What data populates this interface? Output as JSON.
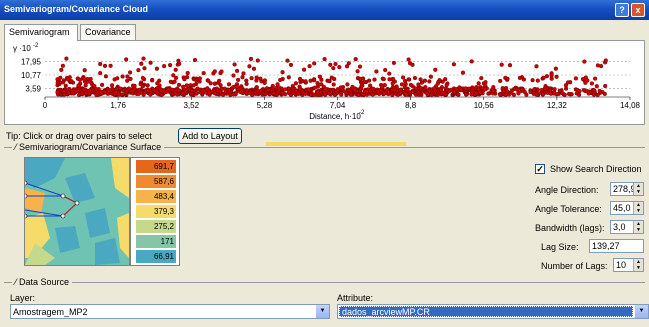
{
  "window": {
    "title": "Semivariogram/Covariance Cloud",
    "help_glyph": "?",
    "close_glyph": "x"
  },
  "tabs": [
    {
      "label": "Semivariogram",
      "active": true
    },
    {
      "label": "Covariance",
      "active": false
    }
  ],
  "chart_data": {
    "type": "scatter",
    "xlabel": "Distance, h·10",
    "xlabel_exponent": "-2",
    "ylabel": "γ ·10",
    "ylabel_exponent": "-2",
    "x_ticks": [
      "0",
      "1,76",
      "3,52",
      "5,28",
      "7,04",
      "8,8",
      "10,56",
      "12,32",
      "14,08"
    ],
    "y_ticks": [
      "17,95",
      "10,77",
      "3,59"
    ],
    "xlim": [
      0,
      14.08
    ],
    "ylim": [
      0,
      21.54
    ],
    "grid": true,
    "marker_color": "#cc0000",
    "point_count_estimate": 1400
  },
  "tip": {
    "text": "Tip:   Click or drag over pairs to select",
    "add_layout_label": "Add to Layout"
  },
  "surface": {
    "section_label": "Semivariogram/Covariance Surface",
    "legend": [
      {
        "value": "691,7",
        "color": "#e6661a"
      },
      {
        "value": "587,6",
        "color": "#f08a2e"
      },
      {
        "value": "483,4",
        "color": "#f7b24a"
      },
      {
        "value": "379,3",
        "color": "#f5dc6a"
      },
      {
        "value": "275,2",
        "color": "#c6d98a"
      },
      {
        "value": "171",
        "color": "#86c6a6"
      },
      {
        "value": "66,91",
        "color": "#4aa8c0"
      }
    ],
    "show_search_direction": {
      "label": "Show Search Direction",
      "checked": true
    },
    "angle_direction": {
      "label": "Angle Direction:",
      "value": "278,9"
    },
    "angle_tolerance": {
      "label": "Angle Tolerance:",
      "value": "45,0"
    },
    "bandwidth": {
      "label": "Bandwidth (lags):",
      "value": "3,0"
    },
    "lag_size": {
      "label": "Lag Size:",
      "value": "139,27"
    },
    "number_of_lags": {
      "label": "Number of Lags:",
      "value": "10"
    }
  },
  "datasource": {
    "section_label": "Data Source",
    "layer_label": "Layer:",
    "layer_value": "Amostragem_MP2",
    "attribute_label": "Attribute:",
    "attribute_value": "dados_arcviewMP.CR"
  }
}
